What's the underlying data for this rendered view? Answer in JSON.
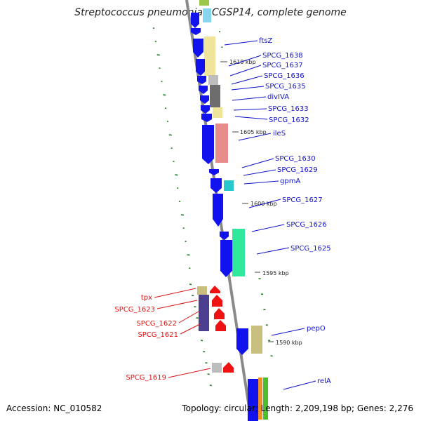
{
  "title": "Streptococcus pneumoniae CGSP14, complete genome",
  "footer": {
    "accession": "Accession: NC_010582",
    "summary": "Topology: circular; Length: 2,209,198 bp; Genes: 2,276"
  },
  "colors": {
    "forward_gene_label": "#1010cc",
    "reverse_gene_label": "#dd1010",
    "cds_forward": "#1010ee",
    "cds_reverse": "#ee1010",
    "gc_skew_ticks": "#1a7a1a",
    "backbone": "#888888"
  },
  "kbp_markers": [
    "1610 kbp",
    "1605 kbp",
    "1600 kbp",
    "1595 kbp",
    "1590 kbp"
  ],
  "gene_labels_right": [
    "ftsZ",
    "SPCG_1638",
    "SPCG_1637",
    "SPCG_1636",
    "SPCG_1635",
    "divIVA",
    "SPCG_1633",
    "SPCG_1632",
    "ileS",
    "SPCG_1630",
    "SPCG_1629",
    "gpmA",
    "SPCG_1627",
    "SPCG_1626",
    "SPCG_1625",
    "pepO",
    "relA"
  ],
  "gene_labels_left": [
    "tpx",
    "SPCG_1623",
    "SPCG_1622",
    "SPCG_1621",
    "SPCG_1619"
  ]
}
